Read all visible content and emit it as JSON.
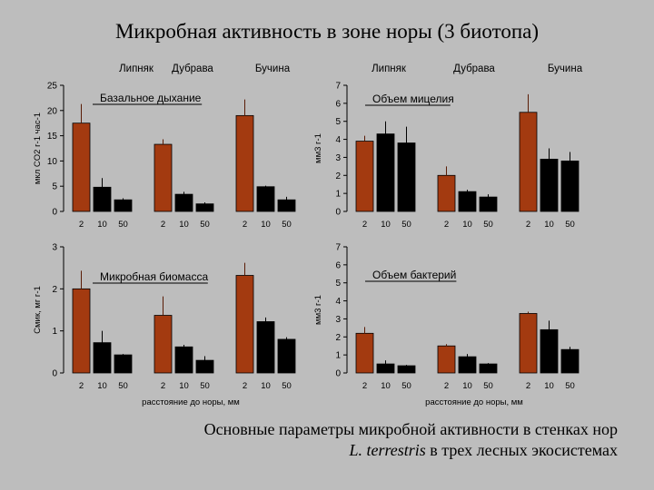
{
  "title": "Микробная активность в зоне норы (3 биотопа)",
  "caption": {
    "line1": "Основные параметры микробной активности в стенках нор",
    "species": "L. terrestris",
    "line2_rest": " в трех лесных экосистемах"
  },
  "biotopes": [
    "Липняк",
    "Дубрава",
    "Бучина"
  ],
  "xlabel": "расстояние до норы, мм",
  "colors": {
    "near": "#a33a10",
    "far": "#000000",
    "background": "#bdbdbd"
  },
  "chart_data": [
    {
      "type": "bar",
      "title": "Базальное дыхание",
      "ylabel": "мкл CO2 г-1 час-1",
      "ylim": [
        0,
        25
      ],
      "yticks": [
        0,
        5,
        10,
        15,
        20,
        25
      ],
      "categories": [
        "2",
        "10",
        "50"
      ],
      "groups": [
        "Липняк",
        "Дубрава",
        "Бучина"
      ],
      "values": [
        [
          17.5,
          4.8,
          2.3
        ],
        [
          13.3,
          3.4,
          1.5
        ],
        [
          19.0,
          4.9,
          2.3
        ]
      ],
      "errors": [
        [
          3.8,
          1.8,
          0.3
        ],
        [
          1.0,
          0.5,
          0.3
        ],
        [
          3.2,
          0.2,
          0.6
        ]
      ]
    },
    {
      "type": "bar",
      "title": "Объем мицелия",
      "ylabel": "мм3 г-1",
      "ylim": [
        0,
        7
      ],
      "yticks": [
        0,
        1,
        2,
        3,
        4,
        5,
        6,
        7
      ],
      "categories": [
        "2",
        "10",
        "50"
      ],
      "groups": [
        "Липняк",
        "Дубрава",
        "Бучина"
      ],
      "values": [
        [
          3.9,
          4.3,
          3.8
        ],
        [
          2.0,
          1.1,
          0.8
        ],
        [
          5.5,
          2.9,
          2.8
        ]
      ],
      "errors": [
        [
          0.3,
          0.7,
          0.9
        ],
        [
          0.5,
          0.1,
          0.15
        ],
        [
          1.0,
          0.6,
          0.5
        ]
      ]
    },
    {
      "type": "bar",
      "title": "Микробная биомасса",
      "ylabel": "Cмик, мг г-1",
      "ylim": [
        0,
        3
      ],
      "yticks": [
        0,
        1,
        2,
        3
      ],
      "categories": [
        "2",
        "10",
        "50"
      ],
      "groups": [
        "Липняк",
        "Дубрава",
        "Бучина"
      ],
      "xlabel": "расстояние до норы, мм",
      "values": [
        [
          2.0,
          0.72,
          0.43
        ],
        [
          1.37,
          0.62,
          0.3
        ],
        [
          2.32,
          1.22,
          0.8
        ]
      ],
      "errors": [
        [
          0.43,
          0.28,
          0.02
        ],
        [
          0.45,
          0.05,
          0.1
        ],
        [
          0.3,
          0.1,
          0.05
        ]
      ]
    },
    {
      "type": "bar",
      "title": "Объем бактерий",
      "ylabel": "мм3 г-1",
      "ylim": [
        0,
        7
      ],
      "yticks": [
        0,
        1,
        2,
        3,
        4,
        5,
        6,
        7
      ],
      "categories": [
        "2",
        "10",
        "50"
      ],
      "groups": [
        "Липняк",
        "Дубрава",
        "Бучина"
      ],
      "xlabel": "расстояние до норы, мм",
      "values": [
        [
          2.2,
          0.5,
          0.4
        ],
        [
          1.5,
          0.9,
          0.5
        ],
        [
          3.3,
          2.4,
          1.3
        ]
      ],
      "errors": [
        [
          0.35,
          0.2,
          0.05
        ],
        [
          0.1,
          0.15,
          0.05
        ],
        [
          0.1,
          0.5,
          0.15
        ]
      ]
    }
  ]
}
